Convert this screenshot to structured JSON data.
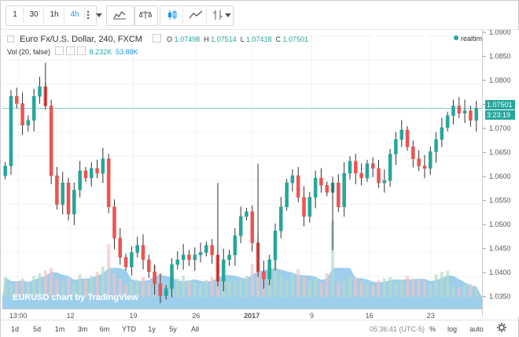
{
  "toolbar": {
    "intervals": [
      "1",
      "30",
      "1h",
      "4h"
    ],
    "active_interval": "4h",
    "icons": [
      "more-intervals-icon",
      "dropdown-arrow-icon",
      "bar-style-icon",
      "compare-icon",
      "indicators-icon",
      "candles-icon",
      "line-style-icon",
      "drawing-icon",
      "dropdown-arrow-icon"
    ]
  },
  "legend": {
    "symbol": "Euro Fx/U.S. Dollar, 240, FXCM",
    "o_label": "O",
    "o_value": "1.07498",
    "h_label": "H",
    "h_value": "1.07514",
    "l_label": "L",
    "l_value": "1.07418",
    "c_label": "C",
    "c_value": "1.07501",
    "volume_label": "Vol (20, false)",
    "volume_value": "8.232K",
    "volume_ma": "53.88K",
    "realtime": "realtime"
  },
  "watermark": "EURUSD chart by TradingView",
  "price_tags": {
    "last_price": "1.07501",
    "countdown": "3:23:19"
  },
  "bottom_bar": {
    "ranges": [
      "1d",
      "5d",
      "1m",
      "3m",
      "6m",
      "YTD",
      "1y",
      "5y",
      "All"
    ],
    "time": "05:36:41 (UTC-5)",
    "percent": "%",
    "log": "log",
    "auto": "auto"
  },
  "colors": {
    "up": "#26a69a",
    "down": "#ef5350",
    "wick": "#333333",
    "volume_up": "#b7dcc5",
    "volume_down": "#f4c1c1",
    "volume_area": "#8cc7ea",
    "last_price_line": "#26a69a",
    "accent": "#2196f3"
  },
  "chart_data": {
    "type": "candlestick",
    "title": "Euro Fx/U.S. Dollar, 240, FXCM",
    "x_ticks": [
      "13:00",
      "12",
      "19",
      "26",
      "2017",
      "9",
      "16",
      "23"
    ],
    "y_ticks": [
      "1.0900",
      "1.0850",
      "1.0800",
      "1.0750",
      "1.0700",
      "1.0650",
      "1.0600",
      "1.0550",
      "1.0500",
      "1.0450",
      "1.0400",
      "1.0350"
    ],
    "ylim": [
      1.0325,
      1.0905
    ],
    "last_price": 1.07501,
    "path_close": [
      1.063,
      1.0775,
      1.076,
      1.0715,
      1.0725,
      1.0775,
      1.0795,
      1.0755,
      1.061,
      1.055,
      1.0595,
      1.053,
      1.058,
      1.062,
      1.0605,
      1.0625,
      1.0615,
      1.0645,
      1.0545,
      1.048,
      1.044,
      1.042,
      1.045,
      1.0465,
      1.0435,
      1.041,
      1.0385,
      1.036,
      1.0375,
      1.0425,
      1.0435,
      1.0445,
      1.0435,
      1.0445,
      1.045,
      1.0465,
      1.0445,
      1.039,
      1.0435,
      1.0445,
      1.0485,
      1.0525,
      1.0535,
      1.047,
      1.041,
      1.0395,
      1.0435,
      1.0495,
      1.0545,
      1.0595,
      1.061,
      1.0565,
      1.0525,
      1.0565,
      1.0605,
      1.059,
      1.0575,
      1.0595,
      1.0545,
      1.0615,
      1.064,
      1.0615,
      1.0605,
      1.0635,
      1.0625,
      1.0595,
      1.06,
      1.0655,
      1.0685,
      1.0705,
      1.067,
      1.0645,
      1.063,
      1.0625,
      1.066,
      1.0685,
      1.071,
      1.0735,
      1.0755,
      1.074,
      1.0745,
      1.0725,
      1.07501
    ],
    "volume": [
      15,
      9,
      12,
      14,
      10,
      16,
      18,
      20,
      22,
      14,
      12,
      15,
      11,
      17,
      13,
      16,
      19,
      23,
      40,
      18,
      14,
      9,
      12,
      13,
      15,
      11,
      24,
      18,
      10,
      8,
      14,
      16,
      12,
      11,
      10,
      13,
      15,
      19,
      20,
      12,
      13,
      14,
      16,
      25,
      22,
      18,
      21,
      28,
      16,
      13,
      17,
      21,
      15,
      12,
      14,
      11,
      18,
      58,
      12,
      14,
      16,
      15,
      12,
      10,
      9,
      13,
      14,
      15,
      11,
      12,
      16,
      14,
      13,
      12,
      9,
      17,
      19,
      20,
      8,
      7,
      9,
      10,
      6
    ],
    "series": [
      {
        "name": "Vol (20, false)",
        "values": "volume"
      }
    ]
  }
}
